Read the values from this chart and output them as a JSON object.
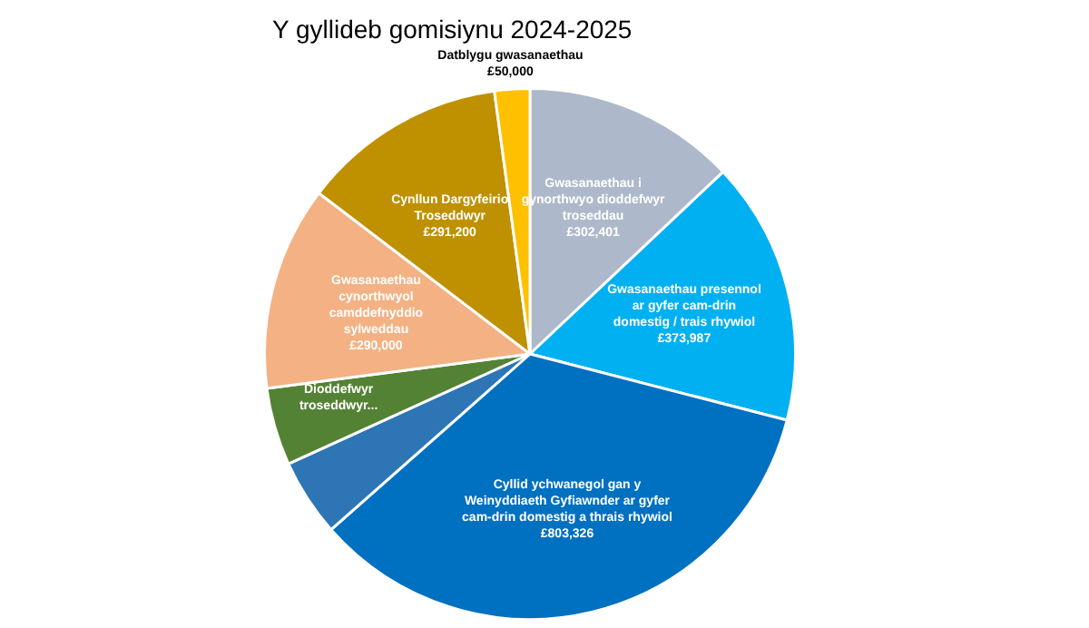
{
  "chart_data": {
    "type": "pie",
    "title": "Y gyllideb gomisiynu 2024-2025",
    "categories": [
      "Gwasanaethau i gynorthwyo dioddefwyr troseddau",
      "Gwasanaethau presennol ar gyfer cam-drin domestig / trais rhywiol",
      "Cyllid ychwanegol gan y Weinyddiaeth Gyfiawnder ar gyfer cam-drin domestig a thrais rhywiol",
      null,
      "Dioddefwyr troseddwyr...",
      "Gwasanaethau cynorthwyol camddefnyddio sylweddau",
      "Cynllun Dargyfeirio Troseddwyr",
      "Datblygu gwasanaethau"
    ],
    "values": [
      302401,
      373987,
      803326,
      110000,
      110000,
      290000,
      291200,
      50000
    ],
    "value_labels": [
      "£302,401",
      "£373,987",
      "£803,326",
      null,
      null,
      "£290,000",
      "£291,200",
      "£50,000"
    ],
    "colors": [
      "#adb9ca",
      "#00b0f0",
      "#0070c0",
      "#2e75b6",
      "#548235",
      "#f4b183",
      "#bf9000",
      "#ffc000"
    ]
  }
}
